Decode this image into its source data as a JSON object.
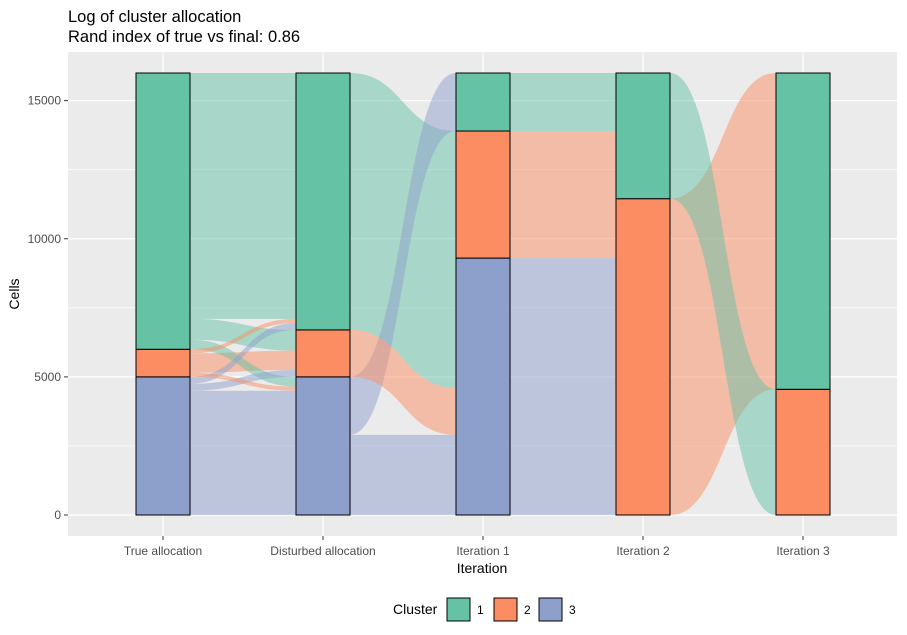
{
  "chart_data": {
    "type": "alluvial",
    "title": "Log of cluster allocation",
    "subtitle": "Rand index of true vs final: 0.86",
    "xlabel": "Iteration",
    "ylabel": "Cells",
    "ylim": [
      0,
      16000
    ],
    "yticks": [
      0,
      5000,
      10000,
      15000
    ],
    "categories": [
      "True allocation",
      "Disturbed allocation",
      "Iteration 1",
      "Iteration 2",
      "Iteration 3"
    ],
    "grid": true,
    "legend": {
      "title": "Cluster",
      "position": "bottom",
      "entries": [
        {
          "label": "1",
          "color": "#66c2a5"
        },
        {
          "label": "2",
          "color": "#fc8d62"
        },
        {
          "label": "3",
          "color": "#8da0cb"
        }
      ]
    },
    "stacks": [
      {
        "stage": "True allocation",
        "segments": [
          {
            "cluster": "3",
            "count": 5000
          },
          {
            "cluster": "2",
            "count": 1000
          },
          {
            "cluster": "1",
            "count": 10000
          }
        ]
      },
      {
        "stage": "Disturbed allocation",
        "segments": [
          {
            "cluster": "3",
            "count": 5000
          },
          {
            "cluster": "2",
            "count": 1700
          },
          {
            "cluster": "1",
            "count": 9300
          }
        ]
      },
      {
        "stage": "Iteration 1",
        "segments": [
          {
            "cluster": "3",
            "count": 9300
          },
          {
            "cluster": "2",
            "count": 4600
          },
          {
            "cluster": "1",
            "count": 2100
          }
        ]
      },
      {
        "stage": "Iteration 2",
        "segments": [
          {
            "cluster": "2",
            "count": 11450
          },
          {
            "cluster": "1",
            "count": 4550
          }
        ]
      },
      {
        "stage": "Iteration 3",
        "segments": [
          {
            "cluster": "2",
            "count": 4550
          },
          {
            "cluster": "1",
            "count": 11450
          }
        ]
      }
    ],
    "flows": [
      {
        "from_stage": 0,
        "to_stage": 1,
        "from_cluster": "3",
        "to_cluster": "3",
        "count": 4500
      },
      {
        "from_stage": 0,
        "to_stage": 1,
        "from_cluster": "3",
        "to_cluster": "2",
        "count": 250
      },
      {
        "from_stage": 0,
        "to_stage": 1,
        "from_cluster": "3",
        "to_cluster": "1",
        "count": 250
      },
      {
        "from_stage": 0,
        "to_stage": 1,
        "from_cluster": "2",
        "to_cluster": "3",
        "count": 150
      },
      {
        "from_stage": 0,
        "to_stage": 1,
        "from_cluster": "2",
        "to_cluster": "2",
        "count": 700
      },
      {
        "from_stage": 0,
        "to_stage": 1,
        "from_cluster": "2",
        "to_cluster": "1",
        "count": 150
      },
      {
        "from_stage": 0,
        "to_stage": 1,
        "from_cluster": "1",
        "to_cluster": "3",
        "count": 350
      },
      {
        "from_stage": 0,
        "to_stage": 1,
        "from_cluster": "1",
        "to_cluster": "2",
        "count": 750
      },
      {
        "from_stage": 0,
        "to_stage": 1,
        "from_cluster": "1",
        "to_cluster": "1",
        "count": 8900
      },
      {
        "from_stage": 1,
        "to_stage": 2,
        "from_cluster": "3",
        "to_cluster": "1",
        "count": 2100
      },
      {
        "from_stage": 1,
        "to_stage": 2,
        "from_cluster": "3",
        "to_cluster": "3",
        "count": 2900
      },
      {
        "from_stage": 1,
        "to_stage": 2,
        "from_cluster": "2",
        "to_cluster": "3",
        "count": 1700
      },
      {
        "from_stage": 1,
        "to_stage": 2,
        "from_cluster": "1",
        "to_cluster": "3",
        "count": 4700
      },
      {
        "from_stage": 1,
        "to_stage": 2,
        "from_cluster": "1",
        "to_cluster": "2",
        "count": 4600
      },
      {
        "from_stage": 2,
        "to_stage": 3,
        "from_cluster": "3",
        "to_cluster": "2",
        "count": 9300
      },
      {
        "from_stage": 2,
        "to_stage": 3,
        "from_cluster": "2",
        "to_cluster": "1",
        "count": 2450
      },
      {
        "from_stage": 2,
        "to_stage": 3,
        "from_cluster": "2",
        "to_cluster": "2",
        "count": 2150
      },
      {
        "from_stage": 2,
        "to_stage": 3,
        "from_cluster": "1",
        "to_cluster": "1",
        "count": 2100
      },
      {
        "from_stage": 3,
        "to_stage": 4,
        "from_cluster": "2",
        "to_cluster": "1",
        "count": 11450
      },
      {
        "from_stage": 3,
        "to_stage": 4,
        "from_cluster": "1",
        "to_cluster": "2",
        "count": 4550
      }
    ]
  }
}
